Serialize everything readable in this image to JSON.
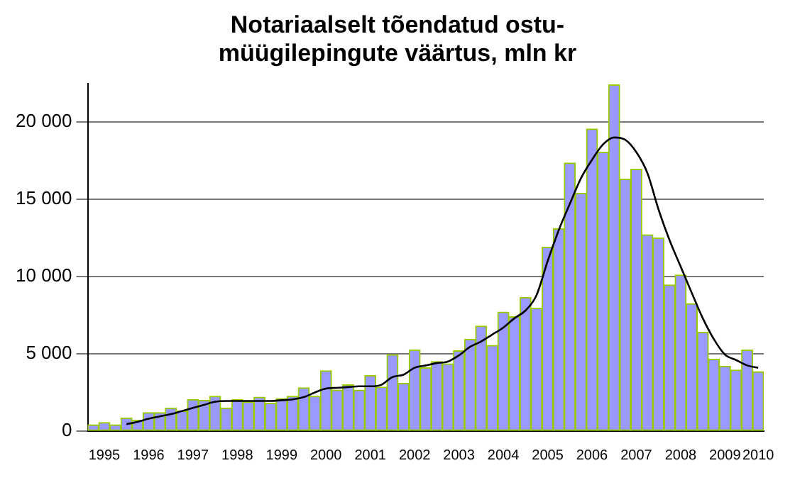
{
  "chart_data": {
    "type": "bar",
    "title": "Notariaalselt tõendatud ostu-müügilepingute väärtus, mln kr",
    "categories": [
      null,
      "1995",
      null,
      null,
      null,
      "1996",
      null,
      null,
      null,
      "1997",
      null,
      null,
      null,
      "1998",
      null,
      null,
      null,
      "1999",
      null,
      null,
      null,
      "2000",
      null,
      null,
      null,
      "2001",
      null,
      null,
      null,
      "2002",
      null,
      null,
      null,
      "2003",
      null,
      null,
      null,
      "2004",
      null,
      null,
      null,
      "2005",
      null,
      null,
      null,
      "2006",
      null,
      null,
      null,
      "2007",
      null,
      null,
      null,
      "2008",
      null,
      null,
      null,
      "2009",
      null,
      null,
      "2010"
    ],
    "series": [
      {
        "color": "#9999ff",
        "values": [
          400,
          550,
          400,
          850,
          700,
          1200,
          1200,
          1500,
          1300,
          2050,
          2000,
          2250,
          1500,
          2050,
          1900,
          2200,
          1800,
          2100,
          2250,
          2800,
          2250,
          3900,
          2650,
          3000,
          2650,
          3600,
          2850,
          4950,
          3100,
          5250,
          4100,
          4500,
          4350,
          5200,
          5950,
          6800,
          5550,
          7700,
          7400,
          8650,
          7950,
          11900,
          13100,
          17350,
          15400,
          19550,
          18050,
          22400,
          16300,
          16950,
          12700,
          12500,
          9450,
          10100,
          8250,
          6400,
          4650,
          4200,
          3950,
          5250,
          3850
        ]
      },
      {
        "type": "line",
        "color": "#000000",
        "values": [
          null,
          null,
          null,
          450,
          600,
          800,
          950,
          1100,
          1300,
          1500,
          1700,
          1900,
          1950,
          1950,
          1950,
          1950,
          1950,
          2000,
          2050,
          2200,
          2500,
          2750,
          2800,
          2850,
          2900,
          2900,
          3000,
          3500,
          3650,
          4100,
          4250,
          4400,
          4500,
          4900,
          5450,
          5800,
          6250,
          6700,
          7300,
          7800,
          8800,
          11000,
          13000,
          14700,
          16350,
          17550,
          18550,
          19000,
          18850,
          18050,
          16700,
          14350,
          12350,
          10650,
          8950,
          7300,
          5950,
          4950,
          4600,
          4250,
          4100
        ]
      }
    ],
    "ylim": [
      0,
      22500
    ],
    "yticks": [
      0,
      {
        "value": 5000,
        "label": "5 000"
      },
      {
        "value": 10000,
        "label": "10 000"
      },
      {
        "value": 15000,
        "label": "15 000"
      },
      {
        "value": 20000,
        "label": "20 000"
      }
    ],
    "grid": "y",
    "legend": false,
    "marker": "none"
  }
}
